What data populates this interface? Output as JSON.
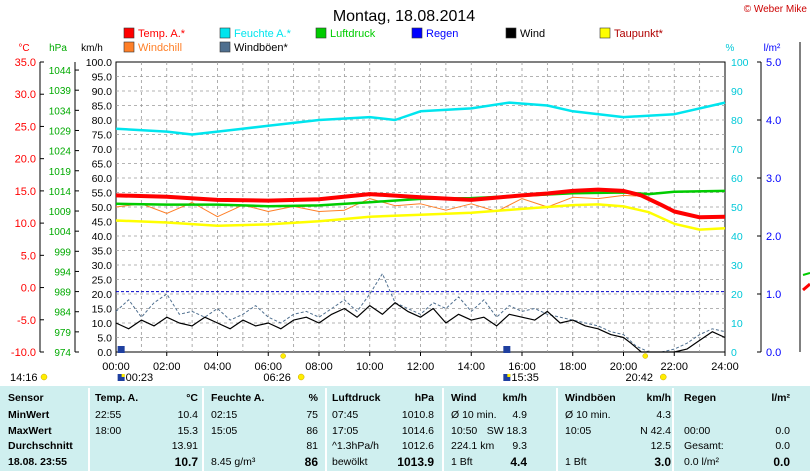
{
  "title": "Montag, 18.08.2014",
  "copyright": "© Weber Mike",
  "colors": {
    "temp": "#ff0000",
    "humidity": "#00e5ee",
    "pressure": "#00cc00",
    "rain": "#0000ff",
    "wind": "#000000",
    "dewpoint": "#ffff00",
    "windchill": "#ff7f27",
    "gust": "#4f6f8f"
  },
  "legend": [
    {
      "label": "Temp. A.*",
      "color": "#ff0000"
    },
    {
      "label": "Feuchte A.*",
      "color": "#00e5ee"
    },
    {
      "label": "Luftdruck",
      "color": "#00cc00"
    },
    {
      "label": "Regen",
      "color": "#0000ff"
    },
    {
      "label": "Wind",
      "color": "#000000"
    },
    {
      "label": "Taupunkt*",
      "color": "#ffff00"
    },
    {
      "label": "Windchill",
      "color": "#ff7f27"
    },
    {
      "label": "Windböen*",
      "color": "#4f6f8f"
    }
  ],
  "axis_headers": {
    "temp": "°C",
    "pressure": "hPa",
    "wind": "km/h",
    "humidity": "%",
    "rain": "l/m²"
  },
  "chart_data": {
    "type": "line",
    "title": "Montag, 18.08.2014",
    "x_unit": "hour",
    "xlim": [
      0,
      24
    ],
    "x_ticks": [
      "00:00",
      "02:00",
      "04:00",
      "06:00",
      "08:00",
      "10:00",
      "12:00",
      "14:00",
      "16:00",
      "18:00",
      "20:00",
      "22:00",
      "24:00"
    ],
    "axes": {
      "temp": {
        "label": "°C",
        "lim": [
          -10,
          35
        ],
        "ticks": [
          "35.0",
          "30.0",
          "25.0",
          "20.0",
          "15.0",
          "10.0",
          "5.0",
          "0.0",
          "-5.0",
          "-10.0"
        ]
      },
      "pressure": {
        "label": "hPa",
        "lim": [
          974,
          1046
        ],
        "ticks": [
          "1044",
          "1039",
          "1034",
          "1029",
          "1024",
          "1019",
          "1014",
          "1009",
          "1004",
          "999",
          "994",
          "989",
          "984",
          "979",
          "974"
        ]
      },
      "wind": {
        "label": "km/h",
        "lim": [
          0,
          100
        ],
        "ticks": [
          "100.0",
          "95.0",
          "90.0",
          "85.0",
          "80.0",
          "75.0",
          "70.0",
          "65.0",
          "60.0",
          "55.0",
          "50.0",
          "45.0",
          "40.0",
          "35.0",
          "30.0",
          "25.0",
          "20.0",
          "15.0",
          "10.0",
          "5.0",
          "0.0"
        ]
      },
      "humidity": {
        "label": "%",
        "lim": [
          0,
          100
        ],
        "ticks": [
          "100",
          "90",
          "80",
          "70",
          "60",
          "50",
          "40",
          "30",
          "20",
          "10",
          "0"
        ]
      },
      "rain": {
        "label": "l/m²",
        "lim": [
          0,
          5
        ],
        "ticks": [
          "5.0",
          "4.0",
          "3.0",
          "2.0",
          "1.0",
          "0.0"
        ]
      }
    },
    "series": [
      {
        "name": "Temp. A.*",
        "axis": "temp",
        "color": "#ff0000",
        "x": [
          0,
          2,
          4,
          6,
          8,
          10,
          12,
          14,
          16,
          17,
          18,
          19,
          20,
          20.7,
          21.5,
          22,
          23,
          24
        ],
        "y": [
          14.3,
          14.1,
          13.6,
          13.5,
          13.7,
          14.5,
          14.0,
          13.6,
          14.3,
          14.6,
          15.0,
          15.2,
          15.0,
          14.3,
          12.8,
          11.8,
          10.9,
          11.0
        ]
      },
      {
        "name": "Feuchte A.*",
        "axis": "humidity",
        "color": "#00e5ee",
        "x": [
          0,
          2,
          3,
          4,
          6,
          8,
          10,
          11,
          12,
          14,
          15.5,
          17,
          18,
          20,
          22,
          24
        ],
        "y": [
          77,
          76,
          75,
          76,
          78,
          80,
          81,
          80,
          83,
          84,
          86,
          85,
          83,
          81,
          82,
          86
        ]
      },
      {
        "name": "Luftdruck",
        "axis": "pressure",
        "color": "#00cc00",
        "x": [
          0,
          2,
          4,
          6,
          8,
          10,
          12,
          14,
          16,
          18,
          20,
          21,
          22,
          24
        ],
        "y": [
          1010.8,
          1010.6,
          1010.6,
          1010.2,
          1010.4,
          1011.2,
          1012.0,
          1012.2,
          1012.8,
          1013.4,
          1013.6,
          1013.2,
          1013.8,
          1014.0
        ]
      },
      {
        "name": "Taupunkt*",
        "axis": "temp",
        "color": "#ffff00",
        "x": [
          0,
          2,
          4,
          6,
          8,
          10,
          12,
          14,
          16,
          18,
          19,
          20,
          21,
          22,
          23,
          24
        ],
        "y": [
          10.4,
          10.1,
          9.6,
          9.8,
          10.3,
          11.0,
          11.3,
          11.6,
          12.2,
          12.8,
          12.9,
          12.6,
          11.7,
          9.9,
          9.0,
          9.2
        ]
      },
      {
        "name": "Windchill",
        "axis": "temp",
        "color": "#ff7f27",
        "x": [
          0,
          1,
          2,
          3,
          4,
          5,
          6,
          7,
          8,
          9,
          10,
          11,
          12,
          13,
          14,
          15,
          16,
          17,
          18,
          19,
          20,
          20.5
        ],
        "y": [
          12.5,
          13.0,
          11.5,
          13.2,
          11.0,
          12.8,
          11.8,
          12.6,
          11.8,
          12.0,
          13.8,
          12.7,
          13.0,
          12.0,
          13.0,
          11.8,
          13.8,
          12.5,
          14.0,
          13.8,
          14.3,
          14.2
        ]
      },
      {
        "name": "Wind",
        "axis": "wind",
        "color": "#000000",
        "x": [
          0,
          0.5,
          1,
          1.5,
          2,
          2.5,
          3,
          3.5,
          4,
          4.5,
          5,
          5.5,
          6,
          6.5,
          7,
          7.5,
          8,
          8.5,
          9,
          9.5,
          10,
          10.5,
          11,
          11.5,
          12,
          12.5,
          13,
          13.5,
          14,
          14.5,
          15,
          15.5,
          16,
          16.5,
          17,
          17.5,
          18,
          18.5,
          19,
          19.5,
          20,
          20.3,
          20.7,
          21,
          21.5,
          22,
          22.5,
          23,
          23.5,
          24
        ],
        "y": [
          10,
          8,
          11,
          9,
          12,
          10,
          9,
          12,
          10,
          8,
          11,
          9,
          10,
          8,
          11,
          12,
          10,
          13,
          15,
          12,
          16,
          13,
          17,
          14,
          12,
          15,
          10,
          13,
          11,
          12,
          9,
          13,
          12,
          11,
          14,
          10,
          11,
          9,
          8,
          6,
          5,
          3,
          0,
          0,
          0,
          0,
          1,
          4,
          7,
          5
        ]
      },
      {
        "name": "Windböen*",
        "axis": "wind",
        "color": "#4f6f8f",
        "dashed": true,
        "x": [
          0,
          0.5,
          1,
          1.5,
          2,
          2.5,
          3,
          3.5,
          4,
          4.5,
          5,
          5.5,
          6,
          6.5,
          7,
          7.5,
          8,
          8.5,
          9,
          9.5,
          10,
          10.5,
          11,
          11.5,
          12,
          12.5,
          13,
          13.5,
          14,
          14.5,
          15,
          15.5,
          16,
          16.5,
          17,
          17.5,
          18,
          18.5,
          19,
          19.5,
          20,
          20.5,
          21,
          21.5,
          22,
          22.5,
          23,
          23.5,
          24
        ],
        "y": [
          14,
          18,
          12,
          17,
          20,
          13,
          14,
          12,
          15,
          11,
          13,
          16,
          12,
          10,
          13,
          14,
          12,
          15,
          18,
          14,
          20,
          27,
          17,
          15,
          13,
          17,
          15,
          19,
          14,
          18,
          12,
          16,
          14,
          15,
          13,
          12,
          11,
          10,
          9,
          7,
          6,
          2,
          0,
          0,
          1,
          3,
          6,
          8,
          7
        ]
      }
    ],
    "pressure_reference_line": 989,
    "events": [
      {
        "label": "00:23",
        "pos": "top",
        "hour": 0.38
      },
      {
        "label": "06:26",
        "pos": "bottom",
        "hour": 6.43
      },
      {
        "label": "15:35",
        "pos": "top",
        "hour": 15.58
      },
      {
        "label": "20:42",
        "pos": "bottom",
        "hour": 20.7
      }
    ],
    "left_time": "14:16"
  },
  "table": {
    "cols": [
      "Sensor",
      "Temp. A.",
      "°C",
      "Feuchte A.",
      "%",
      "Luftdruck",
      "hPa",
      "Wind",
      "km/h",
      "Windböen",
      "km/h",
      "Regen",
      "l/m²"
    ],
    "rows": [
      [
        "MinWert",
        "22:55",
        "10.4",
        "02:15",
        "75",
        "07:45",
        "1010.8",
        "Ø 10 min.",
        "4.9",
        "Ø 10 min.",
        "4.3",
        "",
        ""
      ],
      [
        "MaxWert",
        "18:00",
        "15.3",
        "15:05",
        "86",
        "17:05",
        "1014.6",
        "10:50",
        "SW 18.3",
        "10:05",
        "N 42.4",
        "00:00",
        "0.0"
      ],
      [
        "Durchschnitt",
        "",
        "13.91",
        "",
        "81",
        "^1.3hPa/h",
        "1012.6",
        "224.1 km",
        "9.3",
        "",
        "12.5",
        "Gesamt:",
        "0.0"
      ],
      [
        "18.08.  23:55",
        "",
        "10.7",
        "8.45 g/m³",
        "86",
        "bewölkt",
        "1013.9",
        "1 Bft",
        "4.4",
        "1 Bft",
        "3.0",
        "0.0 l/m²",
        "0.0"
      ]
    ]
  }
}
